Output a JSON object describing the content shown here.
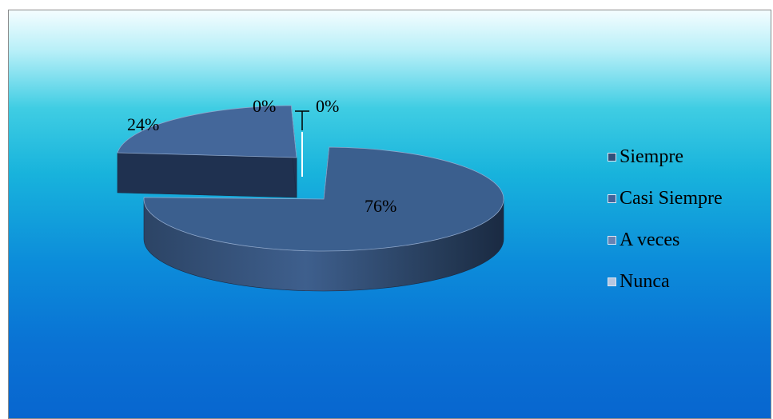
{
  "chart_data": {
    "type": "pie",
    "style": "3d-exploded",
    "categories": [
      "Siempre",
      "Casi Siempre",
      "A veces",
      "Nunca"
    ],
    "values": [
      76,
      24,
      0,
      0
    ],
    "labels": [
      "76%",
      "24%",
      "0%",
      "0%"
    ],
    "legend_position": "right",
    "colors": {
      "Siempre": "#3b5f8e",
      "Casi Siempre": "#44679a",
      "A veces": "#5f7fb0",
      "Nunca": "#9db3d4"
    }
  },
  "legend": {
    "items": [
      {
        "label": "Siempre",
        "swatch": "#2f4f7a"
      },
      {
        "label": "Casi Siempre",
        "swatch": "#41639a"
      },
      {
        "label": "A veces",
        "swatch": "#6683b4"
      },
      {
        "label": "Nunca",
        "swatch": "#b5c6e0"
      }
    ]
  }
}
